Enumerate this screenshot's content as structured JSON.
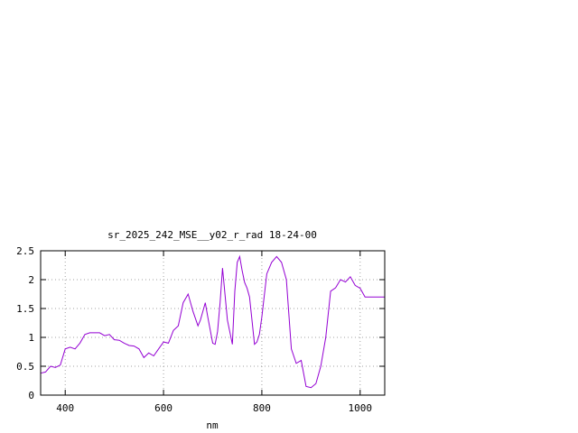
{
  "chart_data": {
    "type": "line",
    "title": "sr_2025_242_MSE__y02_r_rad 18-24-00",
    "xlabel": "nm",
    "ylabel": "",
    "xlim": [
      350,
      1050
    ],
    "ylim": [
      0,
      2.5
    ],
    "xticks": [
      400,
      600,
      800,
      1000
    ],
    "xtick_labels": [
      "400",
      "600",
      "800",
      "1000"
    ],
    "yticks": [
      0,
      0.5,
      1,
      1.5,
      2,
      2.5
    ],
    "ytick_labels": [
      "0",
      "0.5",
      "1",
      "1.5",
      "2",
      "2.5"
    ],
    "grid": true,
    "legend": "none",
    "line_color": "#9400d3",
    "series": [
      {
        "x": [
          350,
          360,
          370,
          380,
          390,
          400,
          410,
          420,
          430,
          440,
          450,
          460,
          470,
          480,
          490,
          500,
          510,
          520,
          530,
          540,
          550,
          560,
          570,
          580,
          590,
          600,
          610,
          620,
          630,
          640,
          650,
          660,
          670,
          675,
          680,
          685,
          690,
          700,
          705,
          710,
          715,
          720,
          730,
          740,
          745,
          750,
          755,
          760,
          765,
          770,
          775,
          780,
          785,
          790,
          795,
          800,
          810,
          820,
          830,
          840,
          850,
          860,
          870,
          880,
          890,
          900,
          910,
          920,
          930,
          940,
          950,
          960,
          970,
          980,
          990,
          1000,
          1010,
          1020,
          1030,
          1040,
          1050
        ],
        "y": [
          0.38,
          0.4,
          0.5,
          0.48,
          0.52,
          0.8,
          0.83,
          0.8,
          0.9,
          1.05,
          1.08,
          1.08,
          1.08,
          1.03,
          1.05,
          0.96,
          0.95,
          0.9,
          0.86,
          0.85,
          0.8,
          0.65,
          0.73,
          0.68,
          0.8,
          0.92,
          0.9,
          1.12,
          1.2,
          1.6,
          1.75,
          1.45,
          1.2,
          1.3,
          1.45,
          1.6,
          1.35,
          0.9,
          0.88,
          1.1,
          1.6,
          2.2,
          1.3,
          0.88,
          1.8,
          2.3,
          2.4,
          2.15,
          1.95,
          1.85,
          1.7,
          1.3,
          0.88,
          0.92,
          1.05,
          1.35,
          2.1,
          2.3,
          2.4,
          2.3,
          2.0,
          0.8,
          0.55,
          0.6,
          0.15,
          0.13,
          0.2,
          0.5,
          1.0,
          1.8,
          1.86,
          2.0,
          1.96,
          2.05,
          1.9,
          1.85,
          1.7,
          1.7,
          1.7,
          1.7,
          1.7
        ]
      }
    ]
  }
}
